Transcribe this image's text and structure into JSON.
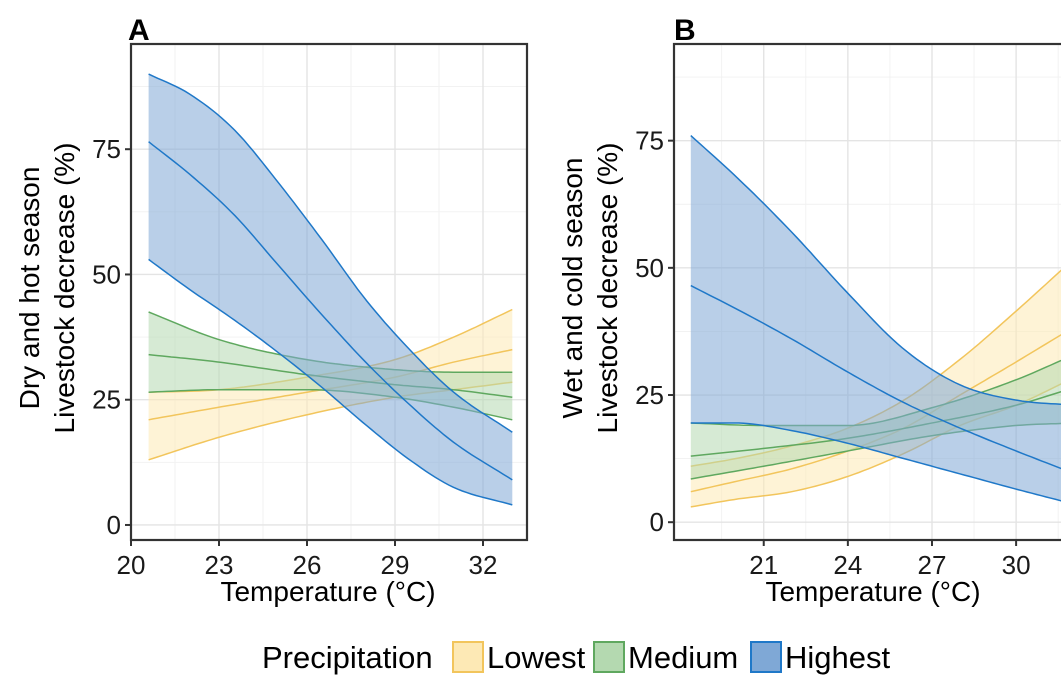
{
  "chart_data": [
    {
      "type": "line",
      "title": "A",
      "xlabel": "Temperature (°C)",
      "ylabel": [
        "Dry and hot season",
        "Livestock decrease (%)"
      ],
      "xlim": [
        20,
        33.5
      ],
      "ylim": [
        -3,
        96
      ],
      "x_ticks": [
        20,
        23,
        26,
        29,
        32
      ],
      "y_ticks": [
        0,
        25,
        50,
        75
      ],
      "grid": true,
      "series": [
        {
          "name": "Lowest",
          "color": "#f2c55c",
          "fill": "#fde9b5",
          "x": [
            20.6,
            33
          ],
          "mid": [
            [
              20.6,
              21
            ],
            [
              23,
              23.5
            ],
            [
              26,
              26.5
            ],
            [
              29,
              29.5
            ],
            [
              31,
              32.5
            ],
            [
              33,
              35
            ]
          ],
          "lower": [
            [
              20.6,
              13
            ],
            [
              23,
              17.5
            ],
            [
              26,
              22
            ],
            [
              29,
              25.5
            ],
            [
              31,
              27
            ],
            [
              33,
              28.5
            ]
          ],
          "upper": [
            [
              20.6,
              26.5
            ],
            [
              23,
              27
            ],
            [
              26,
              29.5
            ],
            [
              29,
              33
            ],
            [
              31,
              37.5
            ],
            [
              33,
              43
            ]
          ]
        },
        {
          "name": "Medium",
          "color": "#5fa85f",
          "fill": "#b4d9b0",
          "mid": [
            [
              20.6,
              34
            ],
            [
              23,
              32.5
            ],
            [
              26,
              30
            ],
            [
              29,
              28
            ],
            [
              31,
              27
            ],
            [
              33,
              25.5
            ]
          ],
          "lower": [
            [
              20.6,
              26.5
            ],
            [
              23,
              27
            ],
            [
              26,
              27
            ],
            [
              29,
              25.5
            ],
            [
              31,
              23.5
            ],
            [
              33,
              21
            ]
          ],
          "upper": [
            [
              20.6,
              42.5
            ],
            [
              23,
              37
            ],
            [
              26,
              33
            ],
            [
              29,
              31
            ],
            [
              31,
              30.5
            ],
            [
              33,
              30.5
            ]
          ]
        },
        {
          "name": "Highest",
          "color": "#1f78c8",
          "fill": "#7fa8d6",
          "mid": [
            [
              20.6,
              76.5
            ],
            [
              22,
              70
            ],
            [
              23.5,
              62
            ],
            [
              25,
              52
            ],
            [
              26.5,
              42
            ],
            [
              28,
              32.5
            ],
            [
              29.5,
              24
            ],
            [
              31,
              16.5
            ],
            [
              33,
              9
            ]
          ],
          "lower": [
            [
              20.6,
              53
            ],
            [
              22,
              47
            ],
            [
              23.5,
              41
            ],
            [
              25,
              34.5
            ],
            [
              26.5,
              27.5
            ],
            [
              28,
              20
            ],
            [
              29.5,
              13
            ],
            [
              31,
              7.5
            ],
            [
              33,
              4
            ]
          ],
          "upper": [
            [
              20.6,
              90
            ],
            [
              22,
              86
            ],
            [
              23.5,
              79
            ],
            [
              25,
              68.5
            ],
            [
              26.5,
              57
            ],
            [
              28,
              45
            ],
            [
              29.5,
              35
            ],
            [
              31,
              26.5
            ],
            [
              33,
              18.5
            ]
          ]
        }
      ]
    },
    {
      "type": "line",
      "title": "B",
      "xlabel": "Temperature (°C)",
      "ylabel": [
        "Wet and cold season",
        "Livestock decrease (%)"
      ],
      "xlim": [
        17.8,
        32.1
      ],
      "ylim": [
        -3.5,
        94
      ],
      "x_ticks": [
        21,
        24,
        27,
        30
      ],
      "y_ticks": [
        0,
        25,
        50,
        75
      ],
      "grid": true,
      "series": [
        {
          "name": "Lowest",
          "color": "#f2c55c",
          "fill": "#fde9b5",
          "mid": [
            [
              18.4,
              6
            ],
            [
              20,
              8
            ],
            [
              22,
              10.5
            ],
            [
              24,
              14
            ],
            [
              26,
              18.5
            ],
            [
              28,
              25
            ],
            [
              30,
              31.5
            ],
            [
              32.1,
              38.5
            ]
          ],
          "lower": [
            [
              18.4,
              3
            ],
            [
              20,
              4.5
            ],
            [
              22,
              6
            ],
            [
              24,
              9
            ],
            [
              26,
              13.5
            ],
            [
              28,
              19
            ],
            [
              30,
              23
            ],
            [
              32.1,
              28.5
            ]
          ],
          "upper": [
            [
              18.4,
              11
            ],
            [
              20,
              12.5
            ],
            [
              22,
              15
            ],
            [
              24,
              18.5
            ],
            [
              26,
              24
            ],
            [
              28,
              32
            ],
            [
              30,
              41.5
            ],
            [
              32.1,
              52
            ]
          ]
        },
        {
          "name": "Medium",
          "color": "#5fa85f",
          "fill": "#b4d9b0",
          "mid": [
            [
              18.4,
              13
            ],
            [
              21,
              14.5
            ],
            [
              24,
              16.5
            ],
            [
              27,
              19.5
            ],
            [
              30,
              23
            ],
            [
              32.1,
              26.5
            ]
          ],
          "lower": [
            [
              18.4,
              8.5
            ],
            [
              21,
              11
            ],
            [
              24,
              14
            ],
            [
              27,
              17
            ],
            [
              30,
              19
            ],
            [
              32.1,
              19.5
            ]
          ],
          "upper": [
            [
              18.4,
              19.5
            ],
            [
              21,
              19
            ],
            [
              24,
              19
            ],
            [
              27,
              22.5
            ],
            [
              30,
              28
            ],
            [
              32.1,
              33
            ]
          ]
        },
        {
          "name": "Highest",
          "color": "#1f78c8",
          "fill": "#7fa8d6",
          "mid": [
            [
              18.4,
              46.5
            ],
            [
              20,
              42
            ],
            [
              22,
              36
            ],
            [
              24,
              29.5
            ],
            [
              26,
              23.5
            ],
            [
              28,
              18.5
            ],
            [
              30,
              14
            ],
            [
              32.1,
              9.5
            ]
          ],
          "lower": [
            [
              18.4,
              19.5
            ],
            [
              20,
              19.5
            ],
            [
              22,
              18
            ],
            [
              24,
              15.5
            ],
            [
              26,
              12.5
            ],
            [
              28,
              9.5
            ],
            [
              30,
              6.5
            ],
            [
              32.1,
              3.5
            ]
          ],
          "upper": [
            [
              18.4,
              76
            ],
            [
              20,
              68
            ],
            [
              22,
              57
            ],
            [
              24,
              45
            ],
            [
              26,
              34
            ],
            [
              28,
              27
            ],
            [
              30,
              24
            ],
            [
              32.1,
              23
            ]
          ]
        }
      ]
    }
  ],
  "legend": {
    "title": "Precipitation",
    "items": [
      {
        "label": "Lowest",
        "color": "#f2c55c",
        "fill": "#fde9b5"
      },
      {
        "label": "Medium",
        "color": "#5fa85f",
        "fill": "#b4d9b0"
      },
      {
        "label": "Highest",
        "color": "#1f78c8",
        "fill": "#7fa8d6"
      }
    ]
  }
}
